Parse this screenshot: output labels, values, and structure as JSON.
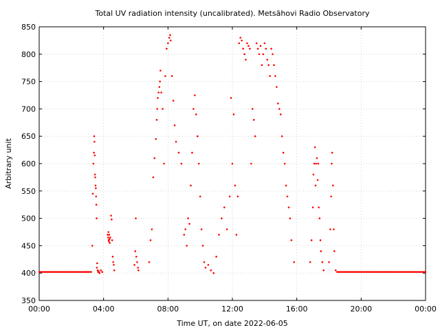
{
  "chart_data": {
    "type": "scatter",
    "title": "Total UV radiation intensity (uncalibrated). Metsähovi Radio Observatory",
    "xlabel": "Time UT, on date 2022-06-05",
    "ylabel": "Arbitrary unit",
    "xlim": [
      "00:00",
      "24:00"
    ],
    "ylim": [
      350,
      850
    ],
    "x_ticks": [
      "00:00",
      "04:00",
      "08:00",
      "12:00",
      "16:00",
      "20:00",
      "00:00"
    ],
    "y_ticks": [
      350,
      400,
      450,
      500,
      550,
      600,
      650,
      700,
      750,
      800,
      850
    ],
    "grid": true,
    "marker_color": "#ff0000",
    "baseline_value": 402,
    "baseline_segments": [
      [
        "00:00",
        "03:15"
      ],
      [
        "18:30",
        "24:00"
      ]
    ],
    "series": [
      {
        "x": [
          "03:18",
          "03:20",
          "03:22",
          "03:24",
          "03:25",
          "03:26",
          "03:27",
          "03:28",
          "03:29",
          "03:30",
          "03:31",
          "03:32",
          "03:33",
          "03:34",
          "03:35",
          "03:36",
          "03:38",
          "03:40",
          "03:42",
          "03:45",
          "03:50",
          "03:55",
          "04:15",
          "04:17",
          "04:18",
          "04:19",
          "04:20",
          "04:21",
          "04:22",
          "04:23",
          "04:25",
          "04:28",
          "04:30",
          "04:32",
          "04:34",
          "04:36",
          "04:38",
          "04:40",
          "05:55",
          "05:58",
          "06:00",
          "06:02",
          "06:05",
          "06:08",
          "06:10",
          "06:50",
          "06:55",
          "07:00",
          "07:05",
          "07:10",
          "07:15",
          "07:18",
          "07:20",
          "07:22",
          "07:25",
          "07:28",
          "07:30",
          "07:32",
          "07:35",
          "07:40",
          "07:45",
          "07:50",
          "07:55",
          "08:00",
          "08:05",
          "08:08",
          "08:10",
          "08:15",
          "08:20",
          "08:25",
          "08:30",
          "08:40",
          "08:50",
          "09:00",
          "09:05",
          "09:10",
          "09:15",
          "09:20",
          "09:25",
          "09:30",
          "09:35",
          "09:40",
          "09:45",
          "09:50",
          "09:55",
          "10:00",
          "10:05",
          "10:10",
          "10:15",
          "10:20",
          "10:30",
          "10:40",
          "10:50",
          "11:00",
          "11:10",
          "11:20",
          "11:30",
          "11:40",
          "11:50",
          "11:55",
          "12:00",
          "12:05",
          "12:10",
          "12:15",
          "12:20",
          "12:25",
          "12:30",
          "12:35",
          "12:40",
          "12:45",
          "12:50",
          "12:55",
          "13:00",
          "13:05",
          "13:10",
          "13:15",
          "13:20",
          "13:25",
          "13:30",
          "13:35",
          "13:40",
          "13:45",
          "13:50",
          "13:55",
          "14:00",
          "14:05",
          "14:10",
          "14:15",
          "14:20",
          "14:25",
          "14:30",
          "14:35",
          "14:40",
          "14:45",
          "14:50",
          "14:55",
          "15:00",
          "15:05",
          "15:10",
          "15:15",
          "15:20",
          "15:25",
          "15:30",
          "15:35",
          "15:40",
          "15:50",
          "16:50",
          "16:55",
          "17:00",
          "17:02",
          "17:05",
          "17:08",
          "17:10",
          "17:12",
          "17:15",
          "17:18",
          "17:20",
          "17:22",
          "17:25",
          "17:28",
          "17:30",
          "17:35",
          "17:40",
          "18:00",
          "18:05",
          "18:08",
          "18:10",
          "18:12",
          "18:15",
          "18:18",
          "18:20",
          "18:25"
        ],
        "y": [
          450,
          545,
          600,
          620,
          650,
          640,
          615,
          580,
          575,
          560,
          555,
          540,
          525,
          500,
          410,
          418,
          405,
          402,
          403,
          400,
          405,
          402,
          470,
          465,
          475,
          460,
          458,
          470,
          462,
          455,
          465,
          505,
          498,
          460,
          430,
          420,
          415,
          405,
          415,
          440,
          500,
          430,
          420,
          410,
          405,
          420,
          460,
          480,
          575,
          610,
          645,
          680,
          700,
          720,
          730,
          740,
          750,
          770,
          730,
          700,
          600,
          760,
          810,
          820,
          830,
          835,
          825,
          760,
          715,
          670,
          640,
          620,
          600,
          470,
          480,
          450,
          500,
          490,
          560,
          620,
          700,
          725,
          690,
          650,
          600,
          540,
          480,
          450,
          420,
          410,
          415,
          405,
          400,
          430,
          470,
          500,
          520,
          480,
          540,
          720,
          600,
          690,
          560,
          470,
          540,
          820,
          830,
          825,
          810,
          800,
          790,
          820,
          815,
          810,
          600,
          700,
          680,
          650,
          820,
          810,
          800,
          815,
          780,
          800,
          820,
          810,
          790,
          780,
          760,
          810,
          800,
          780,
          760,
          740,
          710,
          700,
          690,
          650,
          620,
          600,
          560,
          540,
          520,
          500,
          460,
          420,
          420,
          460,
          520,
          580,
          600,
          630,
          560,
          600,
          610,
          570,
          600,
          520,
          500,
          460,
          440,
          420,
          405,
          420,
          480,
          540,
          600,
          620,
          560,
          480,
          440,
          405
        ]
      }
    ]
  }
}
